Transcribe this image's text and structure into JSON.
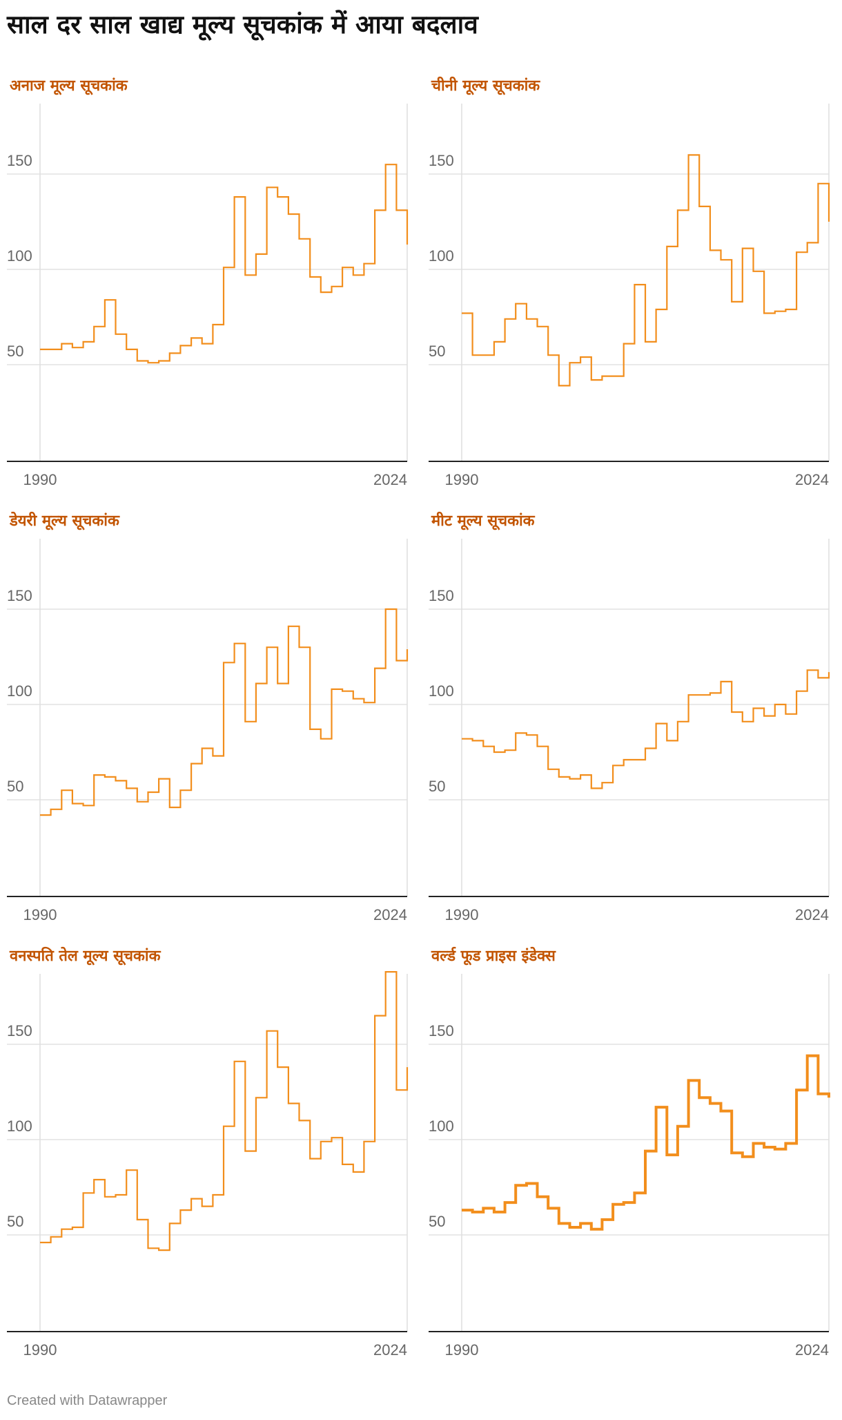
{
  "title": "साल दर साल खाद्य मूल्य सूचकांक में आया बदलाव",
  "footer": "Created with Datawrapper",
  "colors": {
    "line": "#f28e1c",
    "panel_title": "#c25400"
  },
  "chart_data": [
    {
      "type": "line",
      "step": "after",
      "title": "अनाज मूल्य सूचकांक",
      "x_ticks": [
        "1990",
        "2024"
      ],
      "y_ticks": [
        "50",
        "100",
        "150"
      ],
      "ylim": [
        0,
        185
      ],
      "x": [
        1990,
        1991,
        1992,
        1993,
        1994,
        1995,
        1996,
        1997,
        1998,
        1999,
        2000,
        2001,
        2002,
        2003,
        2004,
        2005,
        2006,
        2007,
        2008,
        2009,
        2010,
        2011,
        2012,
        2013,
        2014,
        2015,
        2016,
        2017,
        2018,
        2019,
        2020,
        2021,
        2022,
        2023,
        2024
      ],
      "values": [
        58,
        58,
        61,
        59,
        62,
        70,
        84,
        66,
        58,
        52,
        51,
        52,
        56,
        60,
        64,
        61,
        71,
        101,
        138,
        97,
        108,
        143,
        138,
        129,
        116,
        96,
        88,
        91,
        101,
        97,
        103,
        131,
        155,
        131,
        113
      ]
    },
    {
      "type": "line",
      "step": "after",
      "title": "चीनी मूल्य सूचकांक",
      "x_ticks": [
        "1990",
        "2024"
      ],
      "y_ticks": [
        "50",
        "100",
        "150"
      ],
      "ylim": [
        0,
        185
      ],
      "x": [
        1990,
        1991,
        1992,
        1993,
        1994,
        1995,
        1996,
        1997,
        1998,
        1999,
        2000,
        2001,
        2002,
        2003,
        2004,
        2005,
        2006,
        2007,
        2008,
        2009,
        2010,
        2011,
        2012,
        2013,
        2014,
        2015,
        2016,
        2017,
        2018,
        2019,
        2020,
        2021,
        2022,
        2023,
        2024
      ],
      "values": [
        77,
        55,
        55,
        62,
        74,
        82,
        74,
        70,
        55,
        39,
        51,
        54,
        42,
        44,
        44,
        61,
        92,
        62,
        79,
        112,
        131,
        160,
        133,
        110,
        105,
        83,
        111,
        99,
        77,
        78,
        79,
        109,
        114,
        145,
        125
      ]
    },
    {
      "type": "line",
      "step": "after",
      "title": "डेयरी मूल्य सूचकांक",
      "x_ticks": [
        "1990",
        "2024"
      ],
      "y_ticks": [
        "50",
        "100",
        "150"
      ],
      "ylim": [
        0,
        185
      ],
      "x": [
        1990,
        1991,
        1992,
        1993,
        1994,
        1995,
        1996,
        1997,
        1998,
        1999,
        2000,
        2001,
        2002,
        2003,
        2004,
        2005,
        2006,
        2007,
        2008,
        2009,
        2010,
        2011,
        2012,
        2013,
        2014,
        2015,
        2016,
        2017,
        2018,
        2019,
        2020,
        2021,
        2022,
        2023,
        2024
      ],
      "values": [
        42,
        45,
        55,
        48,
        47,
        63,
        62,
        60,
        56,
        49,
        54,
        61,
        46,
        55,
        69,
        77,
        73,
        122,
        132,
        91,
        111,
        130,
        111,
        141,
        130,
        87,
        82,
        108,
        107,
        103,
        101,
        119,
        150,
        123,
        129
      ]
    },
    {
      "type": "line",
      "step": "after",
      "title": "मीट मूल्य सूचकांक",
      "x_ticks": [
        "1990",
        "2024"
      ],
      "y_ticks": [
        "50",
        "100",
        "150"
      ],
      "ylim": [
        0,
        185
      ],
      "x": [
        1990,
        1991,
        1992,
        1993,
        1994,
        1995,
        1996,
        1997,
        1998,
        1999,
        2000,
        2001,
        2002,
        2003,
        2004,
        2005,
        2006,
        2007,
        2008,
        2009,
        2010,
        2011,
        2012,
        2013,
        2014,
        2015,
        2016,
        2017,
        2018,
        2019,
        2020,
        2021,
        2022,
        2023,
        2024
      ],
      "values": [
        82,
        81,
        78,
        75,
        76,
        85,
        84,
        78,
        66,
        62,
        61,
        63,
        56,
        59,
        68,
        71,
        71,
        77,
        90,
        81,
        91,
        105,
        105,
        106,
        112,
        96,
        91,
        98,
        94,
        100,
        95,
        107,
        118,
        114,
        117
      ]
    },
    {
      "type": "line",
      "step": "after",
      "title": "वनस्पति तेल मूल्य सूचकांक",
      "x_ticks": [
        "1990",
        "2024"
      ],
      "y_ticks": [
        "50",
        "100",
        "150"
      ],
      "ylim": [
        0,
        185
      ],
      "x": [
        1990,
        1991,
        1992,
        1993,
        1994,
        1995,
        1996,
        1997,
        1998,
        1999,
        2000,
        2001,
        2002,
        2003,
        2004,
        2005,
        2006,
        2007,
        2008,
        2009,
        2010,
        2011,
        2012,
        2013,
        2014,
        2015,
        2016,
        2017,
        2018,
        2019,
        2020,
        2021,
        2022,
        2023,
        2024
      ],
      "values": [
        46,
        49,
        53,
        54,
        72,
        79,
        70,
        71,
        84,
        58,
        43,
        42,
        56,
        63,
        69,
        65,
        71,
        107,
        141,
        94,
        122,
        157,
        138,
        119,
        110,
        90,
        99,
        101,
        87,
        83,
        99,
        165,
        188,
        126,
        138
      ]
    },
    {
      "type": "line",
      "step": "after",
      "title": "वर्ल्ड फूड प्राइस इंडेक्स",
      "x_ticks": [
        "1990",
        "2024"
      ],
      "y_ticks": [
        "50",
        "100",
        "150"
      ],
      "ylim": [
        0,
        185
      ],
      "x": [
        1990,
        1991,
        1992,
        1993,
        1994,
        1995,
        1996,
        1997,
        1998,
        1999,
        2000,
        2001,
        2002,
        2003,
        2004,
        2005,
        2006,
        2007,
        2008,
        2009,
        2010,
        2011,
        2012,
        2013,
        2014,
        2015,
        2016,
        2017,
        2018,
        2019,
        2020,
        2021,
        2022,
        2023,
        2024
      ],
      "values": [
        63,
        62,
        64,
        62,
        67,
        76,
        77,
        70,
        64,
        56,
        54,
        56,
        53,
        58,
        66,
        67,
        72,
        94,
        117,
        92,
        107,
        131,
        122,
        119,
        115,
        93,
        91,
        98,
        96,
        95,
        98,
        126,
        144,
        124,
        122
      ]
    }
  ]
}
